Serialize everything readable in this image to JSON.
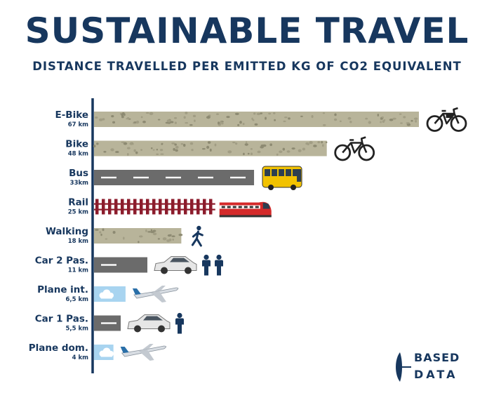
{
  "page": {
    "title": "SUSTAINABLE TRAVEL",
    "subtitle": "DISTANCE TRAVELLED PER EMITTED KG OF CO2 EQUIVALENT"
  },
  "logo": {
    "line1": "BASED",
    "line2": "DATA"
  },
  "colors": {
    "navy": "#17375e",
    "gravel": "#b8b49a",
    "road": "#6b6b6b",
    "rail": "#8c1c2c",
    "sky": "#a8d4f0"
  },
  "chart_data": {
    "type": "bar",
    "orientation": "horizontal",
    "title": "SUSTAINABLE TRAVEL",
    "subtitle": "DISTANCE TRAVELLED PER EMITTED KG OF CO2 EQUIVALENT",
    "unit": "km",
    "grid": false,
    "categories": [
      "E-Bike",
      "Bike",
      "Bus",
      "Rail",
      "Walking",
      "Car 2 Pas.",
      "Plane int.",
      "Car 1 Pas.",
      "Plane dom."
    ],
    "values": [
      67,
      48,
      33,
      25,
      18,
      11,
      6.5,
      5.5,
      4
    ],
    "value_labels": [
      "67 km",
      "48 km",
      "33km",
      "25 km",
      "18 km",
      "11 km",
      "6,5 km",
      "5,5 km",
      "4 km"
    ],
    "bar_textures": [
      "gravel",
      "gravel",
      "road",
      "rail",
      "gravel",
      "road",
      "sky",
      "road",
      "sky"
    ],
    "icons": [
      "e-bike-icon",
      "bike-icon",
      "bus-icon",
      "train-icon",
      "walking-person-icon",
      "car-two-passengers-icon",
      "airplane-icon",
      "car-one-passenger-icon",
      "airplane-icon"
    ]
  }
}
